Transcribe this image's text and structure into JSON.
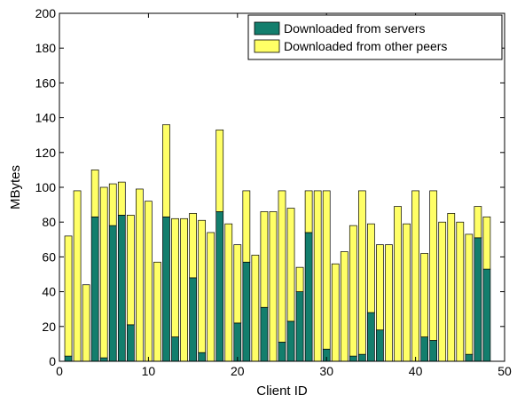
{
  "chart_data": {
    "type": "bar",
    "stacked": true,
    "xlabel": "Client ID",
    "ylabel": "MBytes",
    "xlim": [
      0,
      50
    ],
    "ylim": [
      0,
      200
    ],
    "xticks": [
      0,
      10,
      20,
      30,
      40,
      50
    ],
    "yticks": [
      0,
      20,
      40,
      60,
      80,
      100,
      120,
      140,
      160,
      180,
      200
    ],
    "grid": false,
    "legend_position": "top-right",
    "x": [
      1,
      2,
      3,
      4,
      5,
      6,
      7,
      8,
      9,
      10,
      11,
      12,
      13,
      14,
      15,
      16,
      17,
      18,
      19,
      20,
      21,
      22,
      23,
      24,
      25,
      26,
      27,
      28,
      29,
      30,
      31,
      32,
      33,
      34,
      35,
      36,
      37,
      38,
      39,
      40,
      41,
      42,
      43,
      44,
      45,
      46,
      47,
      48
    ],
    "series": [
      {
        "name": "Downloaded from servers",
        "color": "#137e6d",
        "values": [
          3,
          0,
          0,
          83,
          2,
          78,
          84,
          21,
          0,
          0,
          0,
          83,
          14,
          0,
          48,
          5,
          0,
          86,
          0,
          22,
          57,
          0,
          31,
          0,
          11,
          23,
          40,
          74,
          0,
          7,
          0,
          0,
          3,
          4,
          28,
          18,
          0,
          0,
          0,
          0,
          14,
          12,
          0,
          0,
          0,
          4,
          71,
          53
        ]
      },
      {
        "name": "Downloaded from other peers",
        "color": "#ffff66",
        "values": [
          69,
          98,
          44,
          27,
          98,
          24,
          19,
          63,
          99,
          92,
          57,
          53,
          68,
          82,
          37,
          76,
          74,
          47,
          79,
          45,
          41,
          61,
          55,
          86,
          87,
          65,
          14,
          24,
          98,
          91,
          56,
          63,
          75,
          94,
          51,
          49,
          67,
          89,
          79,
          98,
          48,
          86,
          80,
          85,
          80,
          69,
          18,
          30
        ]
      }
    ]
  }
}
